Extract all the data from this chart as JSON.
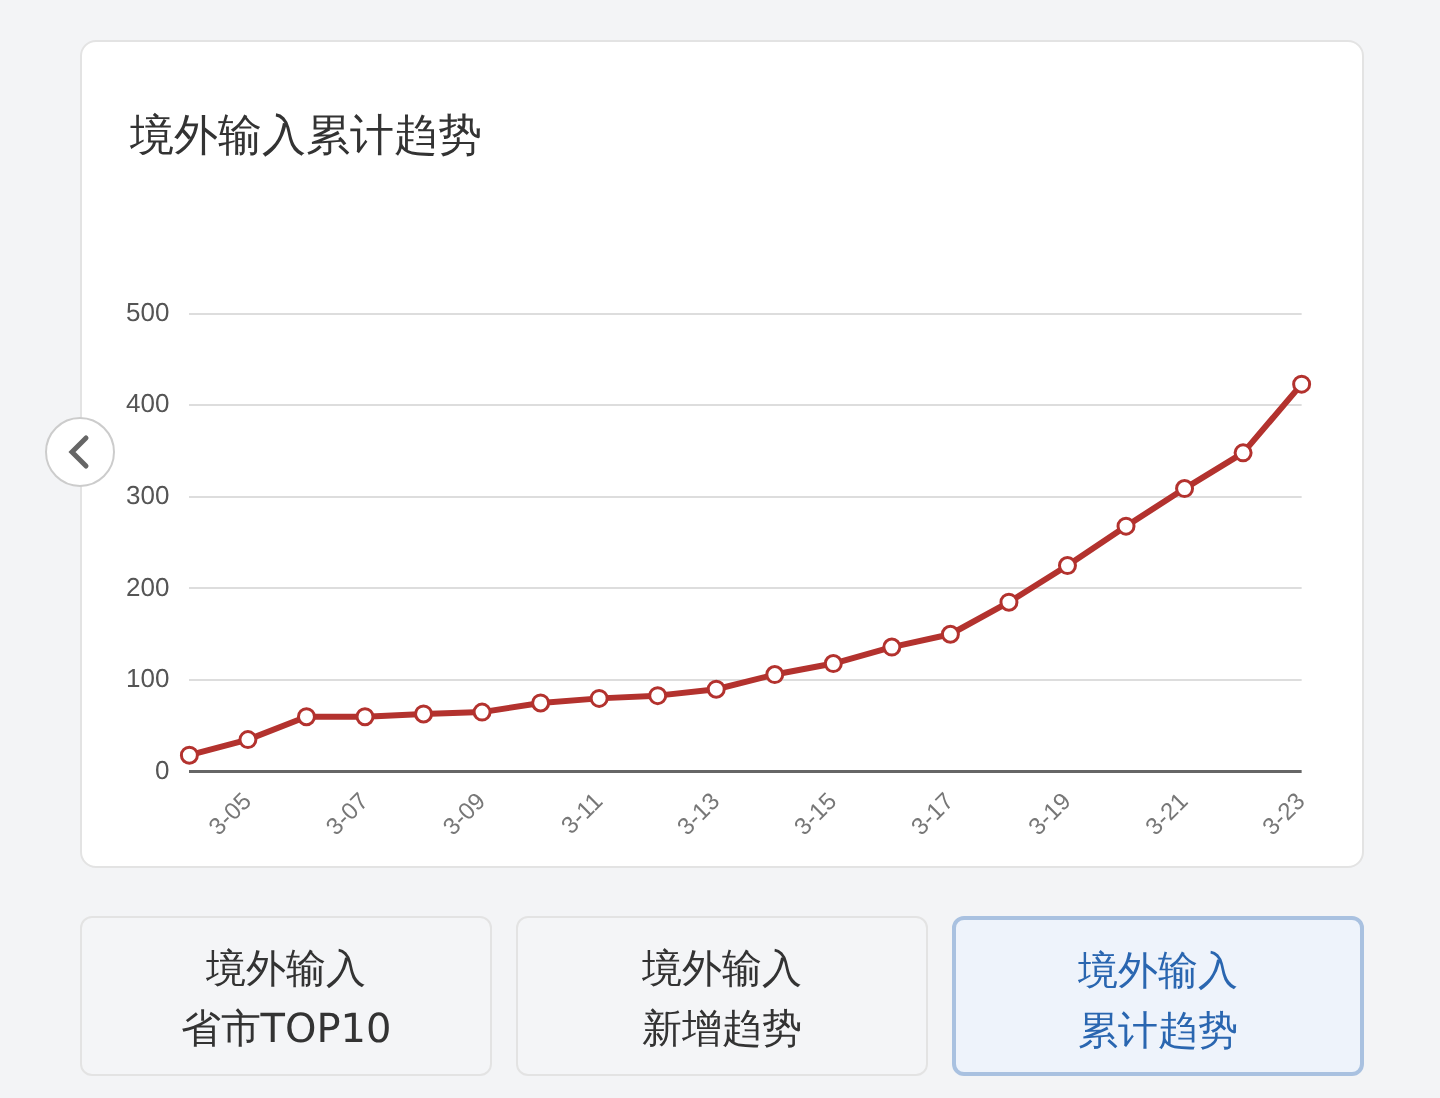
{
  "chart_data": {
    "type": "line",
    "title": "境外输入累计趋势",
    "categories": [
      null,
      "3-05",
      null,
      "3-07",
      null,
      "3-09",
      null,
      "3-11",
      null,
      "3-13",
      null,
      "3-15",
      null,
      "3-17",
      null,
      "3-19",
      null,
      "3-21",
      null,
      "3-23"
    ],
    "series": [
      {
        "color": "#b3322e",
        "values": [
          18,
          35,
          60,
          60,
          63,
          65,
          75,
          80,
          83,
          90,
          106,
          118,
          136,
          150,
          185,
          225,
          268,
          309,
          348,
          423
        ]
      }
    ],
    "ylim": [
      0,
      500
    ],
    "yticks": [
      0,
      100,
      200,
      300,
      400,
      500
    ],
    "grid": "y",
    "legend": false,
    "marker": "circle",
    "line_style": "solid",
    "annotations": [
      "境外输入",
      "省市TOP10",
      "境外输入",
      "新增趋势",
      "境外输入",
      "累计趋势"
    ]
  }
}
